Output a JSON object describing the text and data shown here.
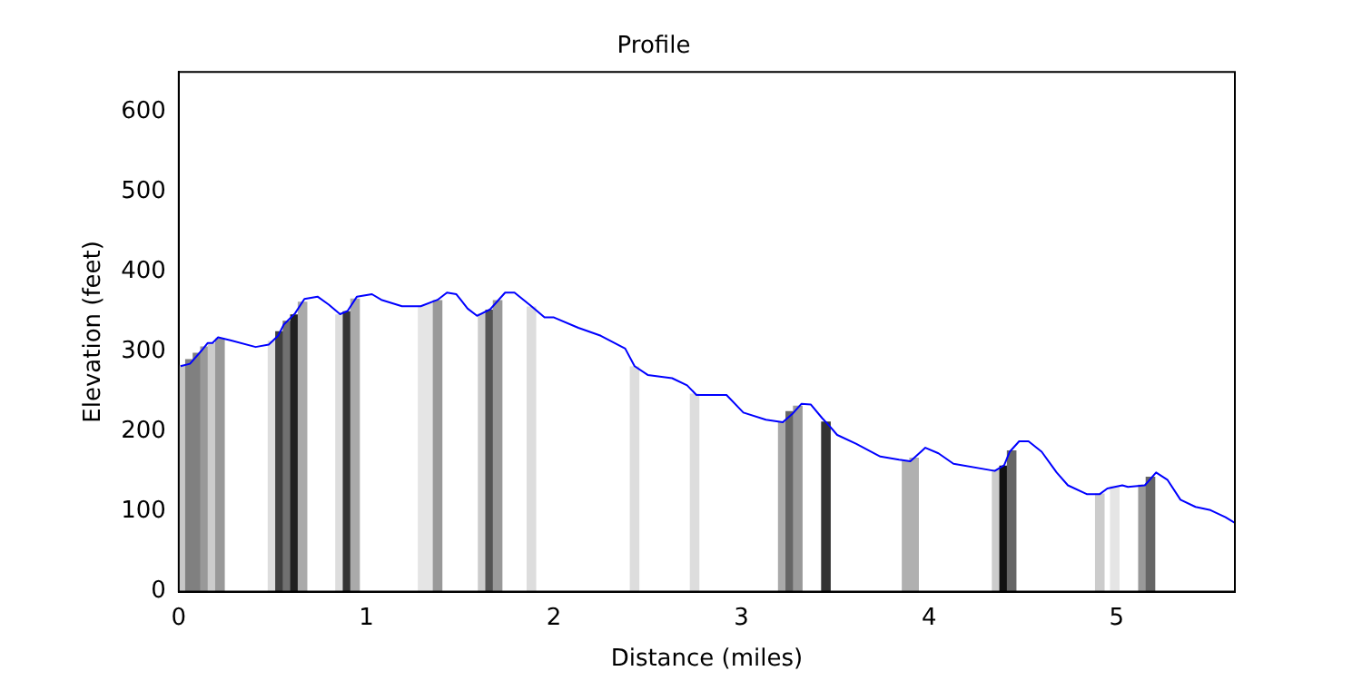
{
  "chart_data": {
    "type": "line",
    "title": "Profile",
    "xlabel": "Distance (miles)",
    "ylabel": "Elevation (feet)",
    "xlim": [
      0,
      5.63
    ],
    "xticks": [
      0,
      1,
      2,
      3,
      4,
      5
    ],
    "ylim": [
      0,
      650
    ],
    "yticks": [
      0,
      100,
      200,
      300,
      400,
      500,
      600
    ],
    "grid": false,
    "legend": false,
    "marker": "none",
    "line_style": "solid",
    "series": [
      {
        "type": "bar",
        "x": [
          0.02,
          0.06,
          0.1,
          0.14,
          0.18,
          0.22,
          0.5,
          0.54,
          0.58,
          0.62,
          0.66,
          0.86,
          0.9,
          0.94,
          1.3,
          1.34,
          1.38,
          1.62,
          1.66,
          1.7,
          1.88,
          2.43,
          2.75,
          3.22,
          3.26,
          3.3,
          3.45,
          3.88,
          3.92,
          4.36,
          4.4,
          4.44,
          4.91,
          4.99,
          5.14,
          5.18
        ],
        "values": [
          283,
          290,
          298,
          306,
          310,
          316,
          313,
          325,
          338,
          346,
          362,
          346,
          350,
          366,
          357,
          360,
          364,
          347,
          352,
          364,
          356,
          281,
          247,
          212,
          225,
          232,
          212,
          163,
          167,
          152,
          157,
          176,
          122,
          132,
          133,
          143
        ],
        "colors": [
          "#c8c8c8",
          "#808080",
          "#808080",
          "#999999",
          "#cccccc",
          "#999999",
          "#dddddd",
          "#404040",
          "#707070",
          "#202020",
          "#aaaaaa",
          "#dddddd",
          "#333333",
          "#aaaaaa",
          "#e5e5e5",
          "#e5e5e5",
          "#999999",
          "#cccccc",
          "#555555",
          "#999999",
          "#dddddd",
          "#dddddd",
          "#dddddd",
          "#aaaaaa",
          "#666666",
          "#999999",
          "#333333",
          "#b0b0b0",
          "#b0b0b0",
          "#cccccc",
          "#111111",
          "#666666",
          "#cccccc",
          "#e5e5e5",
          "#999999",
          "#666666"
        ]
      },
      {
        "color": "#0000ff",
        "x": [
          0.01,
          0.06,
          0.12,
          0.155,
          0.18,
          0.21,
          0.28,
          0.41,
          0.48,
          0.53,
          0.56,
          0.62,
          0.67,
          0.74,
          0.8,
          0.86,
          0.9,
          0.95,
          1.03,
          1.08,
          1.19,
          1.29,
          1.38,
          1.43,
          1.48,
          1.54,
          1.59,
          1.66,
          1.74,
          1.79,
          1.88,
          1.95,
          2.0,
          2.13,
          2.25,
          2.38,
          2.43,
          2.5,
          2.63,
          2.71,
          2.76,
          2.92,
          3.01,
          3.13,
          3.22,
          3.27,
          3.32,
          3.37,
          3.43,
          3.47,
          3.51,
          3.61,
          3.74,
          3.84,
          3.9,
          3.98,
          4.05,
          4.13,
          4.35,
          4.4,
          4.43,
          4.48,
          4.53,
          4.6,
          4.68,
          4.74,
          4.84,
          4.91,
          4.95,
          5.03,
          5.06,
          5.15,
          5.21,
          5.27,
          5.34,
          5.42,
          5.5,
          5.58,
          5.63
        ],
        "values": [
          282,
          285,
          301,
          311,
          311,
          318,
          314,
          306,
          309,
          320,
          334,
          348,
          366,
          369,
          359,
          347,
          351,
          369,
          372,
          365,
          357,
          357,
          365,
          374,
          372,
          354,
          345,
          353,
          374,
          374,
          357,
          343,
          343,
          330,
          320,
          304,
          282,
          271,
          267,
          258,
          246,
          246,
          224,
          215,
          212,
          222,
          235,
          234,
          217,
          207,
          196,
          185,
          169,
          165,
          163,
          180,
          173,
          160,
          151,
          158,
          175,
          188,
          188,
          175,
          149,
          133,
          122,
          122,
          129,
          133,
          131,
          133,
          149,
          140,
          115,
          106,
          102,
          93,
          86
        ]
      }
    ]
  }
}
